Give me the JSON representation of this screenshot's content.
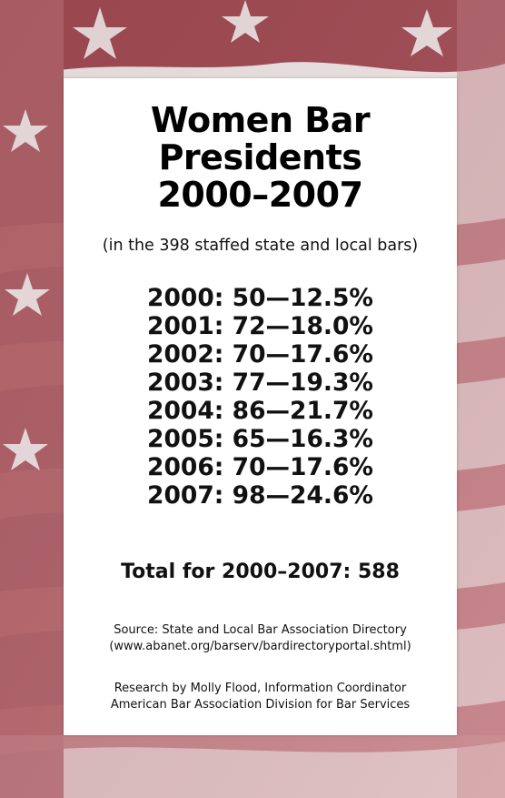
{
  "document": {
    "title_lines": [
      "Women Bar",
      "Presidents",
      "2000–2007"
    ],
    "subtitle": "(in the 398 staffed state and local bars)",
    "stats": [
      "2000: 50—12.5%",
      "2001: 72—18.0%",
      "2002: 70—17.6%",
      "2003: 77—19.3%",
      "2004: 86—21.7%",
      "2005: 65—16.3%",
      "2006: 70—17.6%",
      "2007: 98—24.6%"
    ],
    "total": "Total for 2000–2007: 588",
    "source_lines": [
      "Source: State and Local Bar Association Directory",
      "(www.abanet.org/barserv/bardirectoryportal.shtml)"
    ],
    "credit_lines": [
      "Research by Molly Flood, Information Coordinator",
      "American Bar Association Division for Bar Services"
    ]
  },
  "background": {
    "motif": "american-flag",
    "colors": {
      "stripe": "#b8696e",
      "light": "#efe5e5",
      "canton": "#a24a53",
      "star": "#f4eeee"
    }
  }
}
